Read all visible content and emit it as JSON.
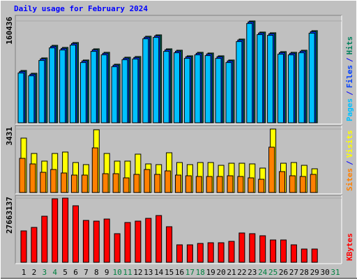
{
  "chart_data": {
    "type": "bar",
    "title": "Daily usage for February 2024",
    "legend_separator": "/",
    "categories": [
      "1",
      "2",
      "3",
      "4",
      "5",
      "6",
      "7",
      "8",
      "9",
      "10",
      "11",
      "12",
      "13",
      "14",
      "15",
      "16",
      "17",
      "18",
      "19",
      "20",
      "21",
      "22",
      "23",
      "24",
      "25",
      "26",
      "27",
      "28",
      "29",
      "30",
      "31"
    ],
    "category_colors": [
      "#000000",
      "#000000",
      "#008040",
      "#008040",
      "#000000",
      "#000000",
      "#000000",
      "#000000",
      "#000000",
      "#008040",
      "#008040",
      "#000000",
      "#000000",
      "#000000",
      "#000000",
      "#000000",
      "#008040",
      "#008040",
      "#000000",
      "#000000",
      "#000000",
      "#000000",
      "#000000",
      "#008040",
      "#008040",
      "#000000",
      "#000000",
      "#000000",
      "#000000",
      "#000000",
      "#008040"
    ],
    "panels": [
      {
        "ylim": [
          0,
          160436
        ],
        "yticks": [
          160436
        ],
        "series": [
          {
            "name": "Pages",
            "color": "#00C0FF",
            "values": [
              78400,
              74000,
              98200,
              118000,
              114700,
              122400,
              94900,
              112500,
              107000,
              88300,
              99300,
              100400,
              132300,
              134500,
              112500,
              110300,
              101500,
              107000,
              105900,
              101500,
              94900,
              127900,
              156400,
              138900,
              137800,
              108100,
              107000,
              110300,
              141100,
              null,
              null
            ]
          },
          {
            "name": "Files",
            "color": "#0040FF",
            "values": [
              80900,
              76500,
              100700,
              120500,
              117200,
              124900,
              97400,
              115000,
              109500,
              90800,
              101800,
              102900,
              134800,
              137000,
              115000,
              112800,
              104000,
              109500,
              108400,
              104000,
              97400,
              130400,
              158900,
              141400,
              140300,
              110600,
              109500,
              112800,
              143600,
              null,
              null
            ]
          },
          {
            "name": "Hits",
            "color": "#00805C",
            "values": [
              82400,
              78000,
              102200,
              122000,
              118700,
              126400,
              98900,
              116500,
              111000,
              92300,
              103300,
              104400,
              136300,
              138500,
              116500,
              114300,
              105500,
              111000,
              109900,
              105500,
              98900,
              131900,
              160436,
              142900,
              141800,
              112100,
              111000,
              114300,
              145100,
              null,
              null
            ]
          }
        ]
      },
      {
        "ylim": [
          0,
          3431
        ],
        "yticks": [
          3431
        ],
        "series": [
          {
            "name": "Sites",
            "color": "#FF8000",
            "values": [
              1847,
              1546,
              1093,
              1244,
              1056,
              943,
              943,
              2413,
              1018,
              1018,
              792,
              980,
              1244,
              980,
              1169,
              943,
              905,
              867,
              867,
              867,
              905,
              867,
              792,
              716,
              2451,
              1131,
              905,
              867,
              980,
              null,
              null
            ]
          },
          {
            "name": "Visits",
            "color": "#FFFF00",
            "values": [
              2941,
              2111,
              1697,
              2111,
              2187,
              1621,
              1508,
              3393,
              2111,
              1697,
              1697,
              2074,
              1546,
              1508,
              2149,
              1621,
              1508,
              1621,
              1621,
              1470,
              1583,
              1583,
              1546,
              1320,
              3431,
              1583,
              1621,
              1470,
              1282,
              null,
              null
            ]
          }
        ]
      },
      {
        "ylim": [
          0,
          27663137
        ],
        "yticks": [
          27663137
        ],
        "series": [
          {
            "name": "KBytes",
            "color": "#FF0000",
            "values": [
              13530000,
              15030000,
              19850000,
              27360000,
              27663137,
              24360000,
              18040000,
              17740000,
              18640000,
              12330000,
              17140000,
              17740000,
              18940000,
              20150000,
              15330000,
              7520000,
              7520000,
              8120000,
              8420000,
              8420000,
              9020000,
              12630000,
              12330000,
              11430000,
              9620000,
              9620000,
              7520000,
              5710000,
              5710000,
              null,
              null
            ]
          }
        ]
      }
    ]
  }
}
